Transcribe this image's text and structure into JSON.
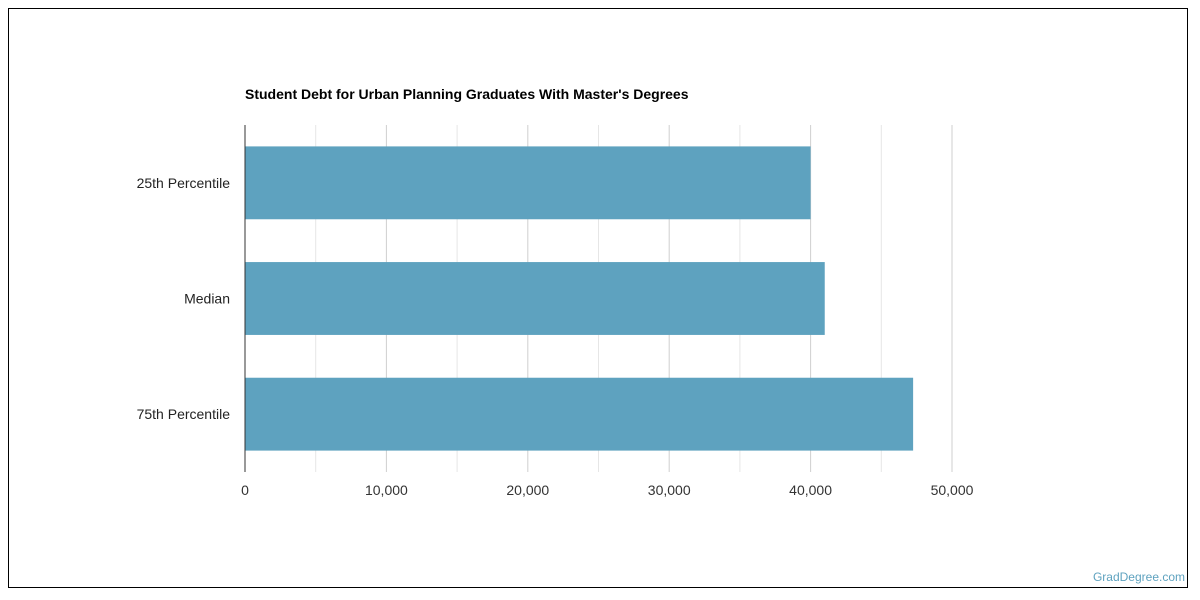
{
  "chart_data": {
    "type": "bar",
    "orientation": "horizontal",
    "title": "Student Debt for Urban Planning Graduates With Master's Degrees",
    "categories": [
      "25th Percentile",
      "Median",
      "75th Percentile"
    ],
    "values": [
      40000,
      41000,
      47250
    ],
    "xlim": [
      0,
      50000
    ],
    "x_ticks": [
      0,
      10000,
      20000,
      30000,
      40000,
      50000
    ],
    "x_tick_labels": [
      "0",
      "10,000",
      "20,000",
      "30,000",
      "40,000",
      "50,000"
    ],
    "xlabel": "",
    "ylabel": "",
    "grid": true,
    "legend": "none",
    "bar_color": "#5ea2bf"
  },
  "branding": {
    "source_label": "GradDegree.com",
    "color": "#5ea2bf"
  }
}
